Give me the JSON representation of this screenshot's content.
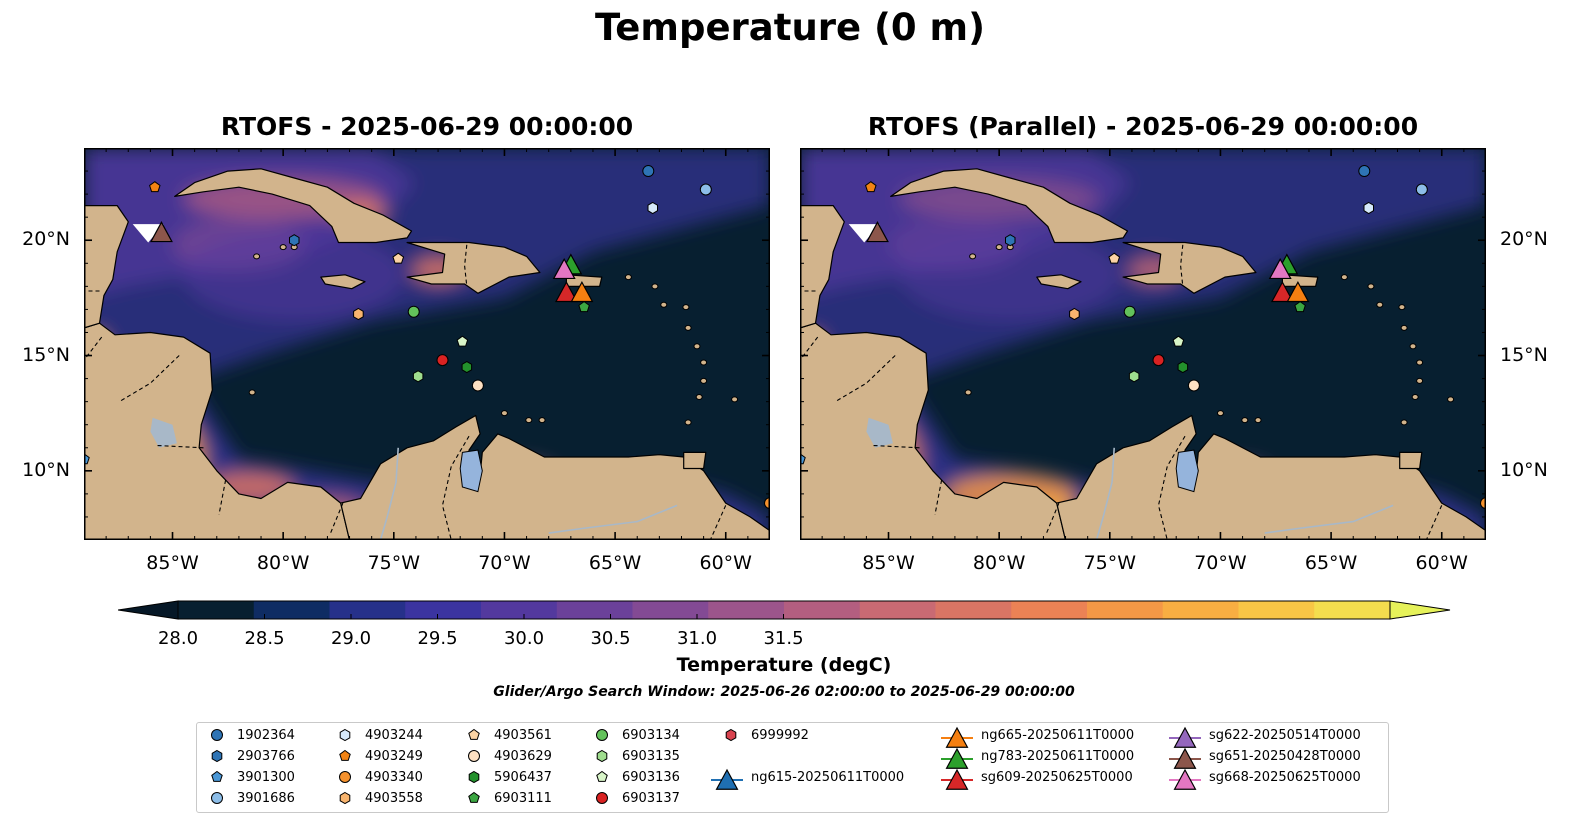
{
  "figure": {
    "suptitle": "Temperature (0 m)",
    "search_window": "Glider/Argo Search Window: 2025-06-26 02:00:00 to 2025-06-29 00:00:00"
  },
  "maps": [
    {
      "title": "RTOFS - 2025-06-29 00:00:00"
    },
    {
      "title": "RTOFS (Parallel) - 2025-06-29 00:00:00"
    }
  ],
  "axes": {
    "xlim_lon": [
      -89,
      -58
    ],
    "ylim_lat": [
      7,
      24
    ],
    "x_ticks": [
      "85°W",
      "80°W",
      "75°W",
      "70°W",
      "65°W",
      "60°W"
    ],
    "x_tick_values": [
      -85,
      -80,
      -75,
      -70,
      -65,
      -60
    ],
    "y_ticks": [
      "20°N",
      "15°N",
      "10°N"
    ],
    "y_tick_values": [
      20,
      15,
      10
    ]
  },
  "colorbar": {
    "label": "Temperature (degC)",
    "min": 28.0,
    "max": 31.5,
    "ticks": [
      "28.0",
      "28.5",
      "29.0",
      "29.5",
      "30.0",
      "30.5",
      "31.0",
      "31.5"
    ],
    "tick_values": [
      28.0,
      28.5,
      29.0,
      29.5,
      30.0,
      30.5,
      31.0,
      31.5
    ],
    "extend": "both",
    "colors": [
      "#071f30",
      "#0f2c63",
      "#26318a",
      "#3b34a0",
      "#53399e",
      "#6b419a",
      "#834a94",
      "#9c558b",
      "#b35e80",
      "#c96a73",
      "#da7564",
      "#eb8255",
      "#f49846",
      "#f8ae42",
      "#f8c646",
      "#f4dd4e"
    ],
    "under_color": "#061827",
    "over_color": "#e6f25a"
  },
  "colors": {
    "land": "#d2b48c",
    "ocean_dark": "#071f30",
    "river": "#a8b8c8",
    "lake": "#95b4dc"
  },
  "legend": {
    "argo": [
      {
        "id": "1902364",
        "marker": "circle",
        "color": "#2e74b5"
      },
      {
        "id": "2903766",
        "marker": "hexagon",
        "color": "#2e74b5"
      },
      {
        "id": "3901300",
        "marker": "pentagon",
        "color": "#4a97d6"
      },
      {
        "id": "3901686",
        "marker": "circle",
        "color": "#8cbde8"
      },
      {
        "id": "4903244",
        "marker": "hexagon",
        "color": "#d6e9fa"
      },
      {
        "id": "4903249",
        "marker": "pentagon",
        "color": "#f28313"
      },
      {
        "id": "4903340",
        "marker": "circle",
        "color": "#f5922e"
      },
      {
        "id": "4903558",
        "marker": "hexagon",
        "color": "#f8b46e"
      },
      {
        "id": "4903561",
        "marker": "pentagon",
        "color": "#fbd3a4"
      },
      {
        "id": "4903629",
        "marker": "circle",
        "color": "#fde0c2"
      },
      {
        "id": "5906437",
        "marker": "hexagon",
        "color": "#23912c"
      },
      {
        "id": "6903111",
        "marker": "pentagon",
        "color": "#3ba642"
      },
      {
        "id": "6903134",
        "marker": "circle",
        "color": "#63c25b"
      },
      {
        "id": "6903135",
        "marker": "hexagon",
        "color": "#9fdd8e"
      },
      {
        "id": "6903136",
        "marker": "pentagon",
        "color": "#d8f5c8"
      },
      {
        "id": "6903137",
        "marker": "circle",
        "color": "#d92222"
      },
      {
        "id": "6999992",
        "marker": "hexagon",
        "color": "#d9434f"
      }
    ],
    "gliders": [
      {
        "id": "ng615-20250611T0000",
        "color": "#1f6fb2"
      },
      {
        "id": "ng665-20250611T0000",
        "color": "#f57f11"
      },
      {
        "id": "ng783-20250611T0000",
        "color": "#2ca02c"
      },
      {
        "id": "sg609-20250625T0000",
        "color": "#d62728"
      },
      {
        "id": "sg622-20250514T0000",
        "color": "#9467bd"
      },
      {
        "id": "sg651-20250428T0000",
        "color": "#8c564b"
      },
      {
        "id": "sg668-20250625T0000",
        "color": "#e377c2"
      }
    ]
  },
  "map_markers": {
    "argo": [
      {
        "id": "1902364",
        "lon": -63.5,
        "lat": 23.0
      },
      {
        "id": "3901686",
        "lon": -60.9,
        "lat": 22.2
      },
      {
        "id": "4903244",
        "lon": -63.3,
        "lat": 21.4
      },
      {
        "id": "4903249",
        "lon": -85.8,
        "lat": 22.3
      },
      {
        "id": "2903766",
        "lon": -79.5,
        "lat": 20.0
      },
      {
        "id": "4903561",
        "lon": -74.8,
        "lat": 19.2
      },
      {
        "id": "4903558",
        "lon": -76.6,
        "lat": 16.8
      },
      {
        "id": "6903134",
        "lon": -74.1,
        "lat": 16.9
      },
      {
        "id": "6903136",
        "lon": -71.9,
        "lat": 15.6
      },
      {
        "id": "6903137",
        "lon": -72.8,
        "lat": 14.8
      },
      {
        "id": "5906437",
        "lon": -71.7,
        "lat": 14.5
      },
      {
        "id": "6903135",
        "lon": -73.9,
        "lat": 14.1
      },
      {
        "id": "4903629",
        "lon": -71.2,
        "lat": 13.7
      },
      {
        "id": "6903111",
        "lon": -66.4,
        "lat": 17.1
      },
      {
        "id": "3901300",
        "lon": -89.0,
        "lat": 10.5
      },
      {
        "id": "4903340",
        "lon": -58.0,
        "lat": 8.6
      }
    ],
    "gliders": [
      {
        "id": "sg651-20250428T0000",
        "lon": -85.5,
        "lat": 20.3
      },
      {
        "id": "ng783-20250611T0000",
        "lon": -67.0,
        "lat": 18.9
      },
      {
        "id": "sg668-20250625T0000",
        "lon": -67.3,
        "lat": 18.7
      },
      {
        "id": "sg609-20250625T0000",
        "lon": -67.2,
        "lat": 17.7
      },
      {
        "id": "ng665-20250611T0000",
        "lon": -66.5,
        "lat": 17.7
      }
    ]
  }
}
